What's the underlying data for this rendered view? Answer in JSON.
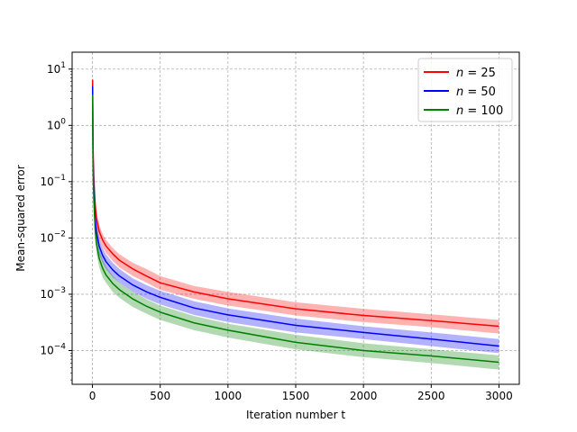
{
  "chart_data": {
    "type": "line",
    "title": "",
    "xlabel": "Iteration number t",
    "ylabel": "Mean-squared error",
    "xlim": [
      -150,
      3150
    ],
    "ylim_log10": [
      -4.6,
      1.3
    ],
    "yscale": "log",
    "grid": true,
    "legend_position": "top-right",
    "x_ticks": [
      {
        "value": 0,
        "label": "0"
      },
      {
        "value": 500,
        "label": "500"
      },
      {
        "value": 1000,
        "label": "1000"
      },
      {
        "value": 1500,
        "label": "1500"
      },
      {
        "value": 2000,
        "label": "2000"
      },
      {
        "value": 2500,
        "label": "2500"
      },
      {
        "value": 3000,
        "label": "3000"
      }
    ],
    "y_ticks": [
      {
        "exp": 1,
        "base": "10",
        "sup": "1"
      },
      {
        "exp": 0,
        "base": "10",
        "sup": "0"
      },
      {
        "exp": -1,
        "base": "10",
        "sup": "−1"
      },
      {
        "exp": -2,
        "base": "10",
        "sup": "−2"
      },
      {
        "exp": -3,
        "base": "10",
        "sup": "−3"
      },
      {
        "exp": -4,
        "base": "10",
        "sup": "−4"
      }
    ],
    "x": [
      1,
      3,
      5,
      10,
      20,
      30,
      50,
      75,
      100,
      150,
      200,
      300,
      400,
      500,
      750,
      1000,
      1500,
      2000,
      2500,
      3000
    ],
    "series": [
      {
        "name_parts": [
          "n",
          " = 25"
        ],
        "color": "#ff0000",
        "band_color": "#ff0000",
        "values": [
          6.5,
          1.2,
          0.35,
          0.12,
          0.038,
          0.022,
          0.013,
          0.0092,
          0.0072,
          0.0052,
          0.004,
          0.0028,
          0.0021,
          0.0016,
          0.0011,
          0.00083,
          0.00055,
          0.00042,
          0.00034,
          0.00027
        ],
        "upper": [
          10.0,
          2.1,
          0.6,
          0.2,
          0.055,
          0.031,
          0.017,
          0.0118,
          0.0092,
          0.0066,
          0.0051,
          0.0036,
          0.0028,
          0.0021,
          0.0014,
          0.0011,
          0.00072,
          0.00055,
          0.00044,
          0.00035
        ],
        "lower": [
          4.2,
          0.7,
          0.2,
          0.07,
          0.026,
          0.015,
          0.0095,
          0.0068,
          0.0054,
          0.0039,
          0.003,
          0.0021,
          0.0016,
          0.0012,
          0.00083,
          0.00063,
          0.00042,
          0.00032,
          0.00026,
          0.0002
        ]
      },
      {
        "name_parts": [
          "n",
          " = 50"
        ],
        "color": "#0000ff",
        "band_color": "#0000ff",
        "values": [
          5.0,
          0.8,
          0.22,
          0.075,
          0.022,
          0.0125,
          0.0071,
          0.0049,
          0.0038,
          0.0027,
          0.0021,
          0.00145,
          0.0011,
          0.00088,
          0.00057,
          0.00043,
          0.00028,
          0.00021,
          0.00016,
          0.00012
        ],
        "upper": [
          7.5,
          1.3,
          0.36,
          0.12,
          0.032,
          0.018,
          0.0098,
          0.0066,
          0.0051,
          0.0036,
          0.0028,
          0.0019,
          0.00145,
          0.00115,
          0.00075,
          0.00056,
          0.00037,
          0.00027,
          0.00021,
          0.00016
        ],
        "lower": [
          3.3,
          0.5,
          0.14,
          0.048,
          0.015,
          0.0087,
          0.0051,
          0.0036,
          0.0028,
          0.002,
          0.0016,
          0.0011,
          0.00083,
          0.00066,
          0.00043,
          0.00032,
          0.00021,
          0.00016,
          0.00012,
          9e-05
        ]
      },
      {
        "name_parts": [
          "n",
          " = 100"
        ],
        "color": "#008000",
        "band_color": "#008000",
        "values": [
          3.5,
          0.55,
          0.15,
          0.048,
          0.014,
          0.0078,
          0.0043,
          0.0029,
          0.0022,
          0.00155,
          0.0012,
          0.00082,
          0.00061,
          0.00048,
          0.00031,
          0.00023,
          0.00014,
          0.0001,
          8e-05,
          6.2e-05
        ],
        "upper": [
          5.5,
          0.9,
          0.25,
          0.08,
          0.021,
          0.0115,
          0.0062,
          0.0041,
          0.0031,
          0.0021,
          0.0016,
          0.0011,
          0.00081,
          0.00063,
          0.00041,
          0.0003,
          0.00019,
          0.000135,
          0.000105,
          8.2e-05
        ],
        "lower": [
          2.2,
          0.33,
          0.09,
          0.03,
          0.0093,
          0.0053,
          0.003,
          0.002,
          0.0016,
          0.0011,
          0.00086,
          0.00059,
          0.00045,
          0.00035,
          0.00023,
          0.00017,
          0.000105,
          7.6e-05,
          6e-05,
          4.6e-05
        ]
      }
    ]
  }
}
